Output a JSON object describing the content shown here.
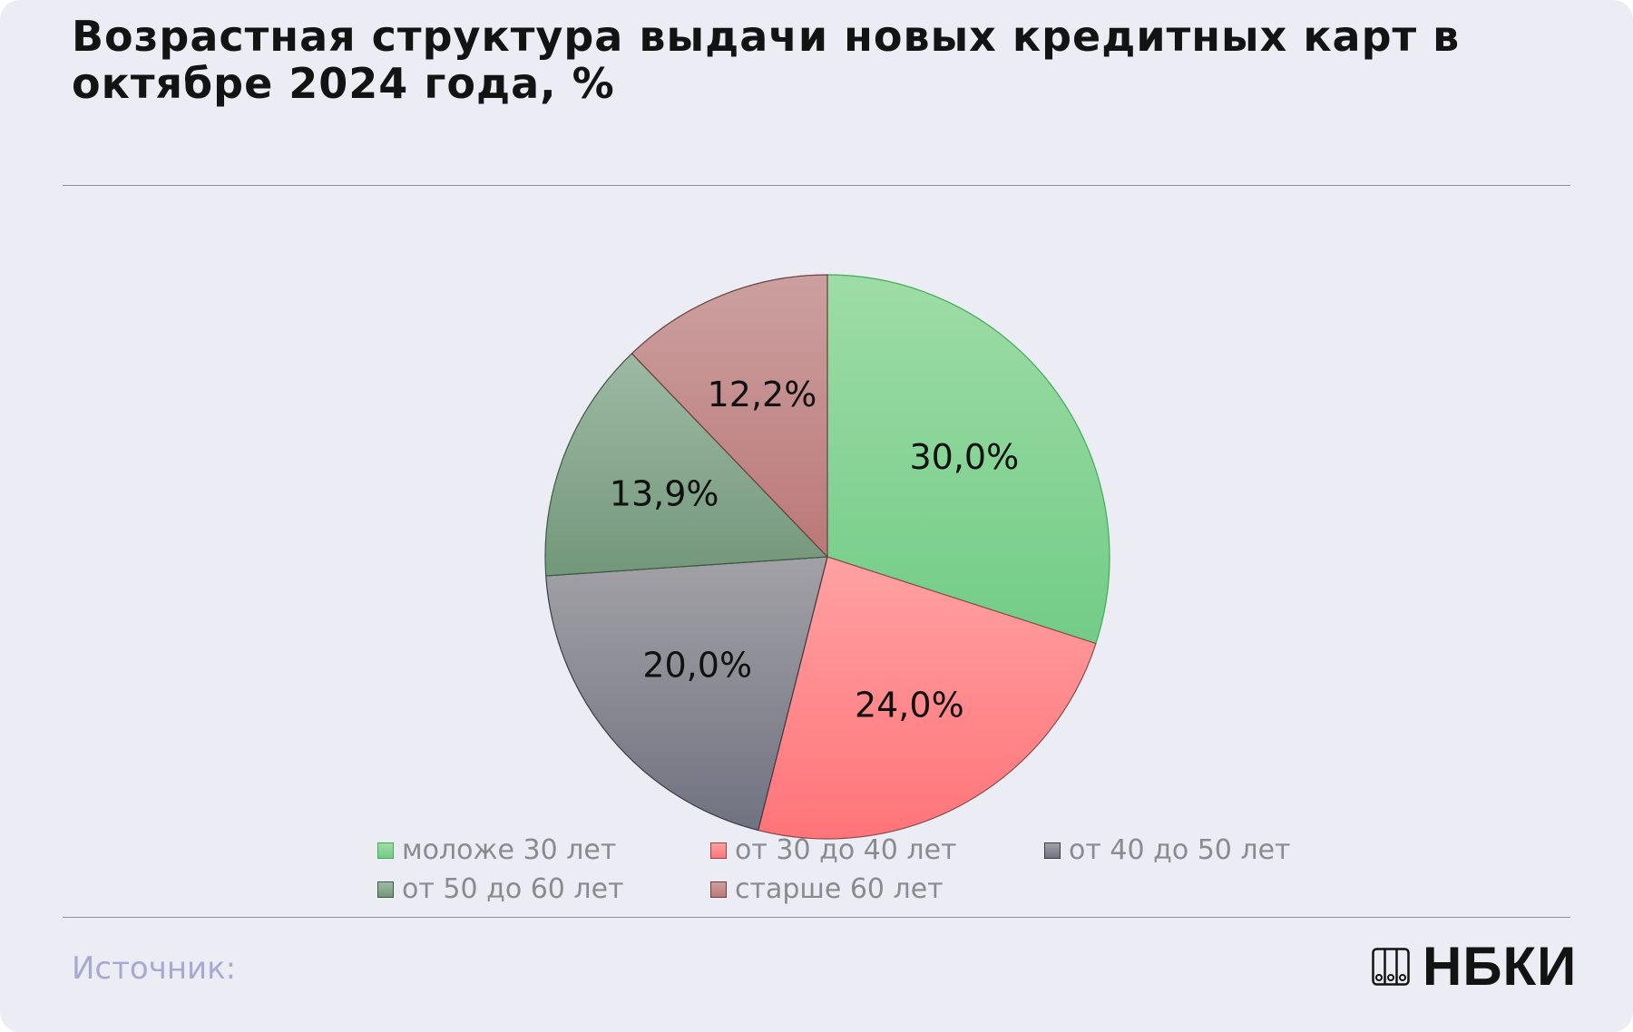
{
  "title": "Возрастная структура выдачи новых кредитных карт в октябре 2024 года, %",
  "source_label": "Источник:",
  "logo_text": "НБКИ",
  "chart_data": {
    "type": "pie",
    "title": "Возрастная структура выдачи новых кредитных карт в октябре 2024 года, %",
    "categories": [
      "моложе 30 лет",
      "от 30 до 40 лет",
      "от 40 до 50 лет",
      "от 50 до 60 лет",
      "старше 60 лет"
    ],
    "values": [
      30.0,
      24.0,
      20.0,
      13.9,
      12.2
    ],
    "data_labels": [
      "30,0%",
      "24,0%",
      "20,0%",
      "13,9%",
      "12,2%"
    ],
    "colors": [
      {
        "top": "#9edca6",
        "bottom": "#72cc87"
      },
      {
        "top": "#ffa1a3",
        "bottom": "#ff7478"
      },
      {
        "top": "#a2a1a6",
        "bottom": "#717281"
      },
      {
        "top": "#9dbaa4",
        "bottom": "#73977b"
      },
      {
        "top": "#cca0a0",
        "bottom": "#bb7878"
      }
    ],
    "legend_position": "bottom",
    "start_angle": "12 o'clock, clockwise"
  }
}
